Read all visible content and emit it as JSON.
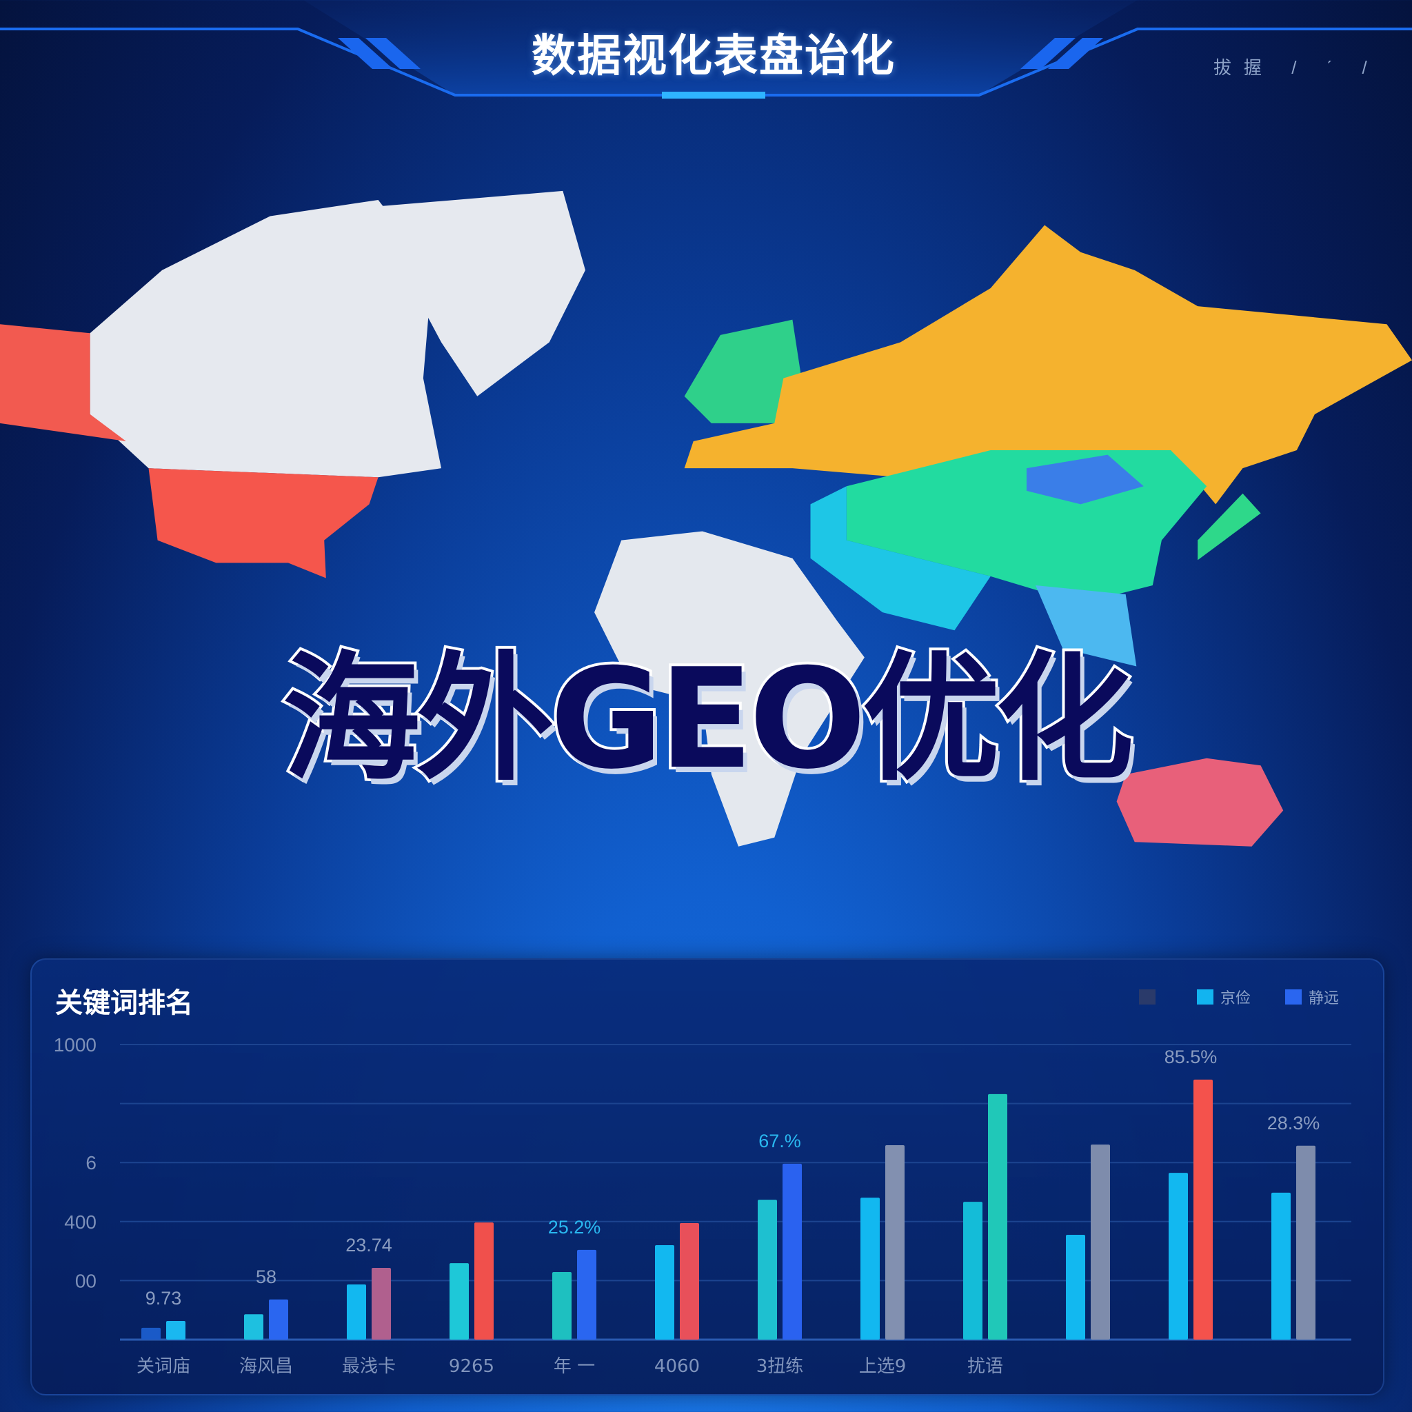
{
  "header": {
    "title": "数据视化表盘诒化",
    "right_text": "拔握 / ˊ /"
  },
  "hero": {
    "title": "海外GEO优化"
  },
  "map": {
    "regions": [
      {
        "name": "canada",
        "color": "#e6e9ef"
      },
      {
        "name": "greenland",
        "color": "#e6e9ef"
      },
      {
        "name": "alaska",
        "color": "#f25a50"
      },
      {
        "name": "usa",
        "color": "#f5564c"
      },
      {
        "name": "europe",
        "color": "#2fd08a"
      },
      {
        "name": "russia",
        "color": "#f5b22e"
      },
      {
        "name": "china",
        "color": "#22dba0"
      },
      {
        "name": "mongolia",
        "color": "#3a7ee8"
      },
      {
        "name": "south-asia",
        "color": "#1ec6e6"
      },
      {
        "name": "southeast-asia",
        "color": "#4cb8f0"
      },
      {
        "name": "japan",
        "color": "#2ed88a"
      },
      {
        "name": "africa",
        "color": "#e4e8ee"
      },
      {
        "name": "australia",
        "color": "#e8607a"
      }
    ]
  },
  "panel": {
    "title": "关键词排名",
    "legend": [
      {
        "label": "",
        "color": "#2a3a6a"
      },
      {
        "label": "京俭",
        "color": "#12b4f0"
      },
      {
        "label": "静远",
        "color": "#2a66f0"
      }
    ]
  },
  "chart_data": {
    "type": "bar",
    "title": "关键词排名",
    "ylim": [
      0,
      1000
    ],
    "y_ticks": [
      "1000",
      "",
      "6",
      "400",
      "00",
      ""
    ],
    "grid": true,
    "categories": [
      "关词庙",
      "海风昌",
      "最浅卡",
      "9265",
      "年 一",
      "4060",
      "3扭练",
      "上选9",
      "扰语",
      "",
      "",
      ""
    ],
    "series": [
      {
        "values": [
          40,
          86,
          187,
          259,
          229,
          320,
          474,
          481,
          467,
          355,
          565,
          498
        ],
        "colors": [
          "#1a5ac8",
          "#1ec0e0",
          "#12b8f0",
          "#1ec8d8",
          "#1ec0c0",
          "#12b8f0",
          "#1ec0d0",
          "#12b8f0",
          "#14bcd8",
          "#12b8f0",
          "#12b8f0",
          "#12b8f0"
        ]
      },
      {
        "values": [
          63,
          136,
          243,
          397,
          304,
          395,
          596,
          659,
          832,
          661,
          881,
          657
        ],
        "colors": [
          "#1ab8f0",
          "#2a66f0",
          "#b0608e",
          "#f0504c",
          "#2a66f0",
          "#e8505a",
          "#2a62f0",
          "#8290b0",
          "#20c8b8",
          "#7e8cac",
          "#f4524c",
          "#7e8cac"
        ]
      }
    ],
    "data_labels": [
      {
        "index": 0,
        "text": "9.73",
        "color": "#8a9cc0"
      },
      {
        "index": 1,
        "text": "58",
        "color": "#8a9cc0"
      },
      {
        "index": 2,
        "text": "23.74",
        "color": "#8a9cc0"
      },
      {
        "index": 4,
        "text": "25.2%",
        "color": "#2ab8f0"
      },
      {
        "index": 6,
        "text": "67.%",
        "color": "#2ab8f0"
      },
      {
        "index": 10,
        "text": "85.5%",
        "color": "#8a9cc0"
      },
      {
        "index": 11,
        "text": "28.3%",
        "color": "#8a9cc0"
      }
    ]
  }
}
